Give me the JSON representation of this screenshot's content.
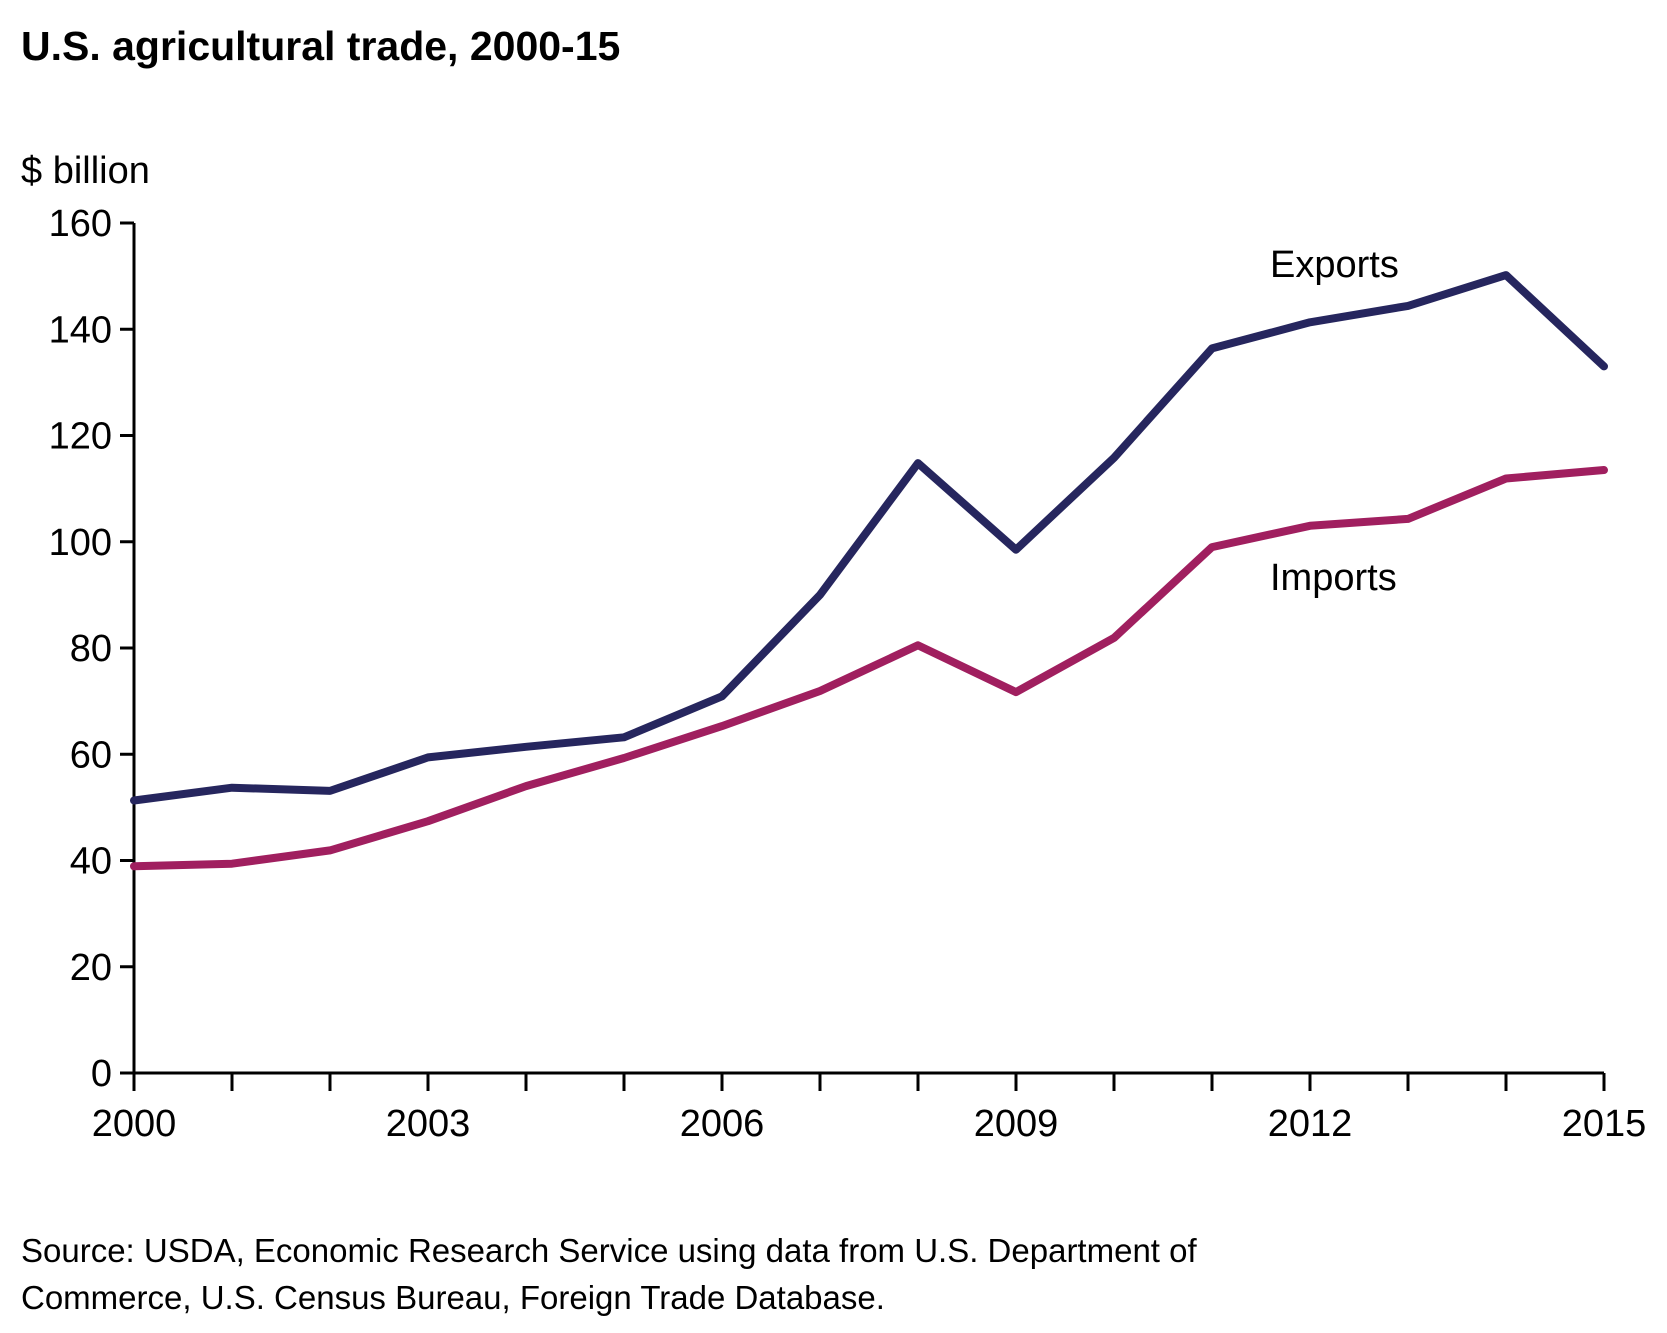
{
  "chart_data": {
    "type": "line",
    "title": "U.S. agricultural trade, 2000-15",
    "ylabel": "$ billion",
    "xlabel": "",
    "x": [
      2000,
      2001,
      2002,
      2003,
      2004,
      2005,
      2006,
      2007,
      2008,
      2009,
      2010,
      2011,
      2012,
      2013,
      2014,
      2015
    ],
    "xlim": [
      2000,
      2015
    ],
    "ylim": [
      0,
      160
    ],
    "x_tick_labels": [
      "2000",
      "2003",
      "2006",
      "2009",
      "2012",
      "2015"
    ],
    "y_tick_labels": [
      "0",
      "20",
      "40",
      "60",
      "80",
      "100",
      "120",
      "140",
      "160"
    ],
    "grid": false,
    "series": [
      {
        "name": "Exports",
        "color": "#26265e",
        "values": [
          51.3,
          53.7,
          53.1,
          59.4,
          61.4,
          63.2,
          70.9,
          90.0,
          114.8,
          98.5,
          115.8,
          136.4,
          141.3,
          144.4,
          150.2,
          133.0
        ]
      },
      {
        "name": "Imports",
        "color": "#a01f5f",
        "values": [
          38.9,
          39.4,
          41.9,
          47.4,
          54.0,
          59.3,
          65.3,
          71.9,
          80.5,
          71.7,
          81.9,
          99.0,
          103.0,
          104.3,
          111.9,
          113.5
        ]
      }
    ],
    "source": "Source: USDA, Economic Research Service using data from U.S. Department of Commerce, U.S. Census Bureau, Foreign Trade Database."
  }
}
